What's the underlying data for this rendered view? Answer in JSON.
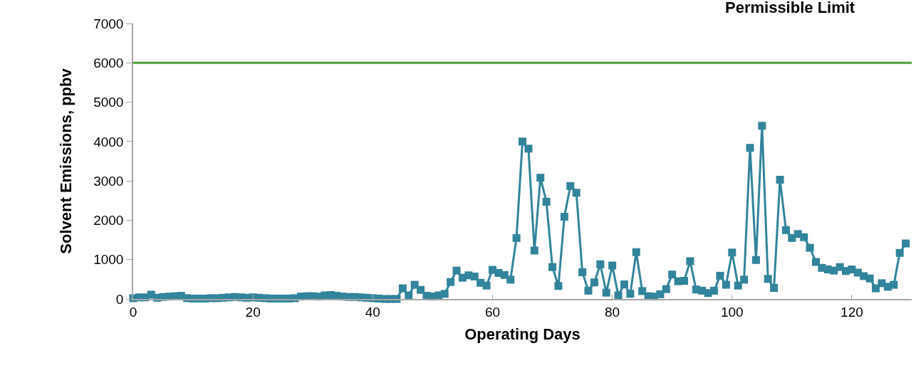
{
  "chart_data": {
    "type": "line",
    "xlabel": "Operating Days",
    "ylabel": "Solvent Emissions, ppbv",
    "xlim": [
      0,
      130
    ],
    "xticks": [
      0,
      20,
      40,
      60,
      80,
      100,
      120
    ],
    "ylim": [
      0,
      7000
    ],
    "yticks": [
      0,
      1000,
      2000,
      3000,
      4000,
      5000,
      6000,
      7000
    ],
    "grid": false,
    "legend": false,
    "marker": "square",
    "line_style": "solid",
    "x": [
      0,
      1,
      2,
      3,
      4,
      5,
      6,
      7,
      8,
      9,
      10,
      11,
      12,
      13,
      14,
      15,
      16,
      17,
      18,
      19,
      20,
      21,
      22,
      23,
      24,
      25,
      26,
      27,
      28,
      29,
      30,
      31,
      32,
      33,
      34,
      35,
      36,
      37,
      38,
      39,
      40,
      41,
      42,
      43,
      44,
      45,
      46,
      47,
      48,
      49,
      50,
      51,
      52,
      53,
      54,
      55,
      56,
      57,
      58,
      59,
      60,
      61,
      62,
      63,
      64,
      65,
      66,
      67,
      68,
      69,
      70,
      71,
      72,
      73,
      74,
      75,
      76,
      77,
      78,
      79,
      80,
      81,
      82,
      83,
      84,
      85,
      86,
      87,
      88,
      89,
      90,
      91,
      92,
      93,
      94,
      95,
      96,
      97,
      98,
      99,
      100,
      101,
      102,
      103,
      104,
      105,
      106,
      107,
      108,
      109,
      110,
      111,
      112,
      113,
      114,
      115,
      116,
      117,
      118,
      119,
      120,
      121,
      122,
      123,
      124,
      125,
      126,
      127,
      128,
      129
    ],
    "series": [
      {
        "color": "#31849b",
        "values": [
          20,
          40,
          40,
          110,
          30,
          50,
          60,
          70,
          80,
          20,
          10,
          10,
          10,
          20,
          20,
          30,
          40,
          50,
          40,
          30,
          40,
          30,
          20,
          10,
          10,
          10,
          10,
          20,
          60,
          70,
          70,
          60,
          90,
          100,
          80,
          60,
          50,
          50,
          40,
          30,
          20,
          10,
          0,
          0,
          0,
          270,
          90,
          360,
          230,
          80,
          60,
          90,
          130,
          430,
          720,
          540,
          600,
          570,
          410,
          340,
          740,
          660,
          610,
          490,
          1550,
          4000,
          3820,
          1230,
          3080,
          2470,
          810,
          330,
          2090,
          2870,
          2700,
          680,
          210,
          420,
          880,
          160,
          850,
          90,
          370,
          130,
          1190,
          200,
          70,
          60,
          120,
          250,
          620,
          450,
          460,
          960,
          240,
          210,
          150,
          210,
          590,
          360,
          1180,
          340,
          490,
          3840,
          990,
          4400,
          510,
          280,
          3030,
          1750,
          1550,
          1650,
          1570,
          1300,
          940,
          790,
          750,
          720,
          810,
          710,
          750,
          670,
          580,
          520,
          270,
          400,
          310,
          360,
          1170,
          1410
        ]
      }
    ],
    "ref_lines": [
      {
        "axis": "y",
        "value": 6000,
        "label": "Permissible Limit",
        "color": "#4ea03c",
        "line_style": "solid"
      }
    ]
  }
}
